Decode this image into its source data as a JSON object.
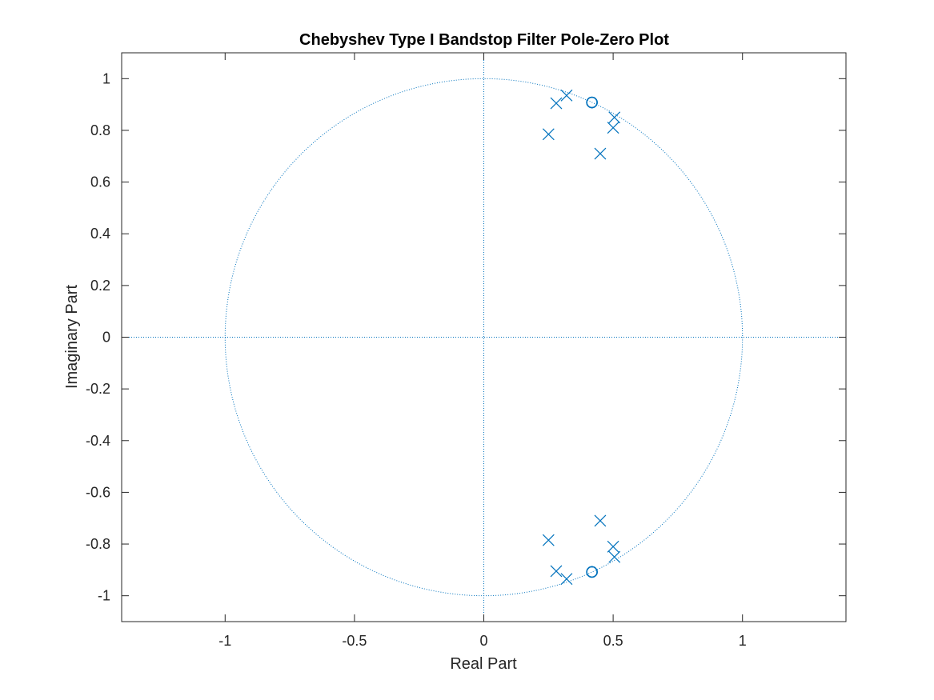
{
  "chart_data": {
    "type": "scatter",
    "title": "Chebyshev Type I Bandstop Filter Pole-Zero Plot",
    "xlabel": "Real Part",
    "ylabel": "Imaginary Part",
    "xlim": [
      -1.4,
      1.4
    ],
    "ylim": [
      -1.1,
      1.1
    ],
    "xticks": [
      -1,
      -0.5,
      0,
      0.5,
      1
    ],
    "xtick_labels": [
      "-1",
      "-0.5",
      "0",
      "0.5",
      "1"
    ],
    "yticks": [
      1,
      0.8,
      0.6,
      0.4,
      0.2,
      0,
      -0.2,
      -0.4,
      -0.6,
      -0.8,
      -1
    ],
    "ytick_labels": [
      "1",
      "0.8",
      "0.6",
      "0.4",
      "0.2",
      "0",
      "-0.2",
      "-0.4",
      "-0.6",
      "-0.8",
      "-1"
    ],
    "grid": false,
    "unit_circle": true,
    "color": "#0072BD",
    "series": [
      {
        "marker": "x",
        "points": [
          [
            0.32,
            0.935
          ],
          [
            0.28,
            0.905
          ],
          [
            0.25,
            0.785
          ],
          [
            0.45,
            0.71
          ],
          [
            0.505,
            0.85
          ],
          [
            0.5,
            0.81
          ],
          [
            0.32,
            -0.935
          ],
          [
            0.28,
            -0.905
          ],
          [
            0.25,
            -0.785
          ],
          [
            0.45,
            -0.71
          ],
          [
            0.505,
            -0.85
          ],
          [
            0.5,
            -0.81
          ]
        ]
      },
      {
        "marker": "o",
        "points": [
          [
            0.418,
            0.908
          ],
          [
            0.418,
            0.908
          ],
          [
            0.418,
            0.908
          ],
          [
            0.418,
            0.908
          ],
          [
            0.418,
            -0.908
          ],
          [
            0.418,
            -0.908
          ],
          [
            0.418,
            -0.908
          ],
          [
            0.418,
            -0.908
          ]
        ]
      }
    ]
  }
}
